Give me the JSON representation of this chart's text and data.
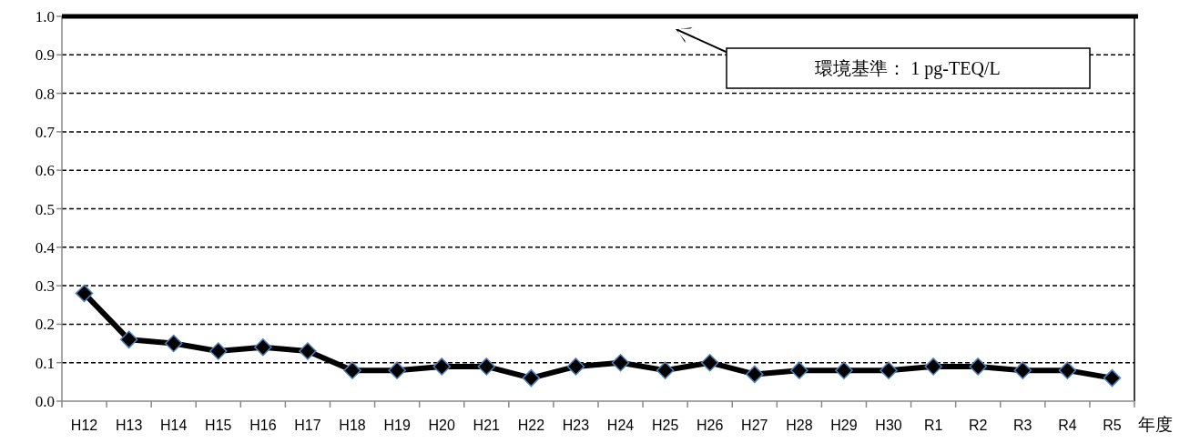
{
  "chart_data": {
    "type": "line",
    "xlabel": "年度",
    "categories": [
      "H12",
      "H13",
      "H14",
      "H15",
      "H16",
      "H17",
      "H18",
      "H19",
      "H20",
      "H21",
      "H22",
      "H23",
      "H24",
      "H25",
      "H26",
      "H27",
      "H28",
      "H29",
      "H30",
      "R1",
      "R2",
      "R3",
      "R4",
      "R5"
    ],
    "series": [
      {
        "color": "#000000",
        "values": [
          0.28,
          0.16,
          0.15,
          0.13,
          0.14,
          0.13,
          0.08,
          0.08,
          0.09,
          0.09,
          0.06,
          0.09,
          0.1,
          0.08,
          0.1,
          0.07,
          0.08,
          0.08,
          0.08,
          0.09,
          0.09,
          0.08,
          0.08,
          0.06
        ]
      }
    ],
    "ylim": [
      0,
      1
    ],
    "yticks": [
      {
        "value": 0,
        "label": "0.0"
      },
      {
        "value": 0.1,
        "label": "0.1"
      },
      {
        "value": 0.2,
        "label": "0.2"
      },
      {
        "value": 0.3,
        "label": "0.3"
      },
      {
        "value": 0.4,
        "label": "0.4"
      },
      {
        "value": 0.5,
        "label": "0.5"
      },
      {
        "value": 0.6,
        "label": "0.6"
      },
      {
        "value": 0.7,
        "label": "0.7"
      },
      {
        "value": 0.8,
        "label": "0.8"
      },
      {
        "value": 0.9,
        "label": "0.9"
      },
      {
        "value": 1,
        "label": "1.0"
      }
    ],
    "ref_lines": [
      {
        "axis": "y",
        "value": 1,
        "label": "環境基準： 1 pg-TEQ/L",
        "color": "#000000",
        "line_style": "solid"
      }
    ],
    "grid": "y",
    "marker": "diamond",
    "line_style": "solid"
  }
}
